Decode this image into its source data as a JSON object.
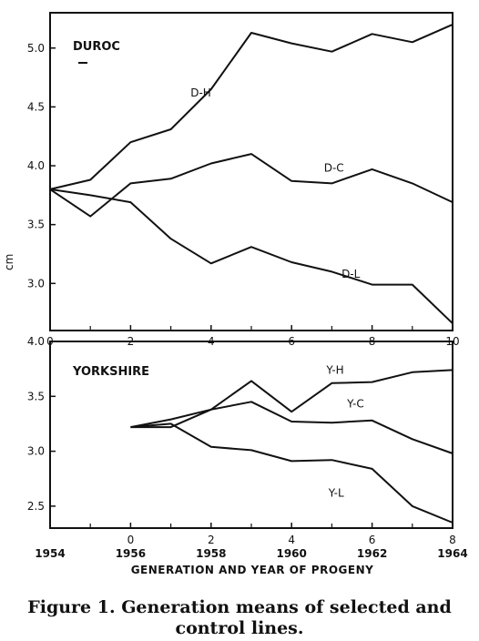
{
  "chart_data": [
    {
      "type": "line",
      "panel_label": "DUROC",
      "ylabel": "cm",
      "ylim": [
        2.6,
        5.3
      ],
      "xlim": [
        0,
        10
      ],
      "y_ticks": [
        "3.0",
        "3.5",
        "4.0",
        "4.5",
        "5.0"
      ],
      "y_tick_values": [
        3.0,
        3.5,
        4.0,
        4.5,
        5.0
      ],
      "x_ticks": [
        "0",
        "2",
        "4",
        "6",
        "8",
        "10"
      ],
      "x_tick_values": [
        0,
        2,
        4,
        6,
        8,
        10
      ],
      "series": [
        {
          "name": "D-H",
          "x": [
            0,
            1,
            2,
            3,
            4,
            5,
            6,
            7,
            8,
            9,
            10
          ],
          "y": [
            3.8,
            3.88,
            4.2,
            4.31,
            4.65,
            5.13,
            5.04,
            4.97,
            5.12,
            5.05,
            5.2
          ]
        },
        {
          "name": "D-C",
          "x": [
            0,
            1,
            2,
            3,
            4,
            5,
            6,
            7,
            8,
            9,
            10
          ],
          "y": [
            3.8,
            3.57,
            3.85,
            3.89,
            4.02,
            4.1,
            3.87,
            3.85,
            3.97,
            3.85,
            3.69
          ]
        },
        {
          "name": "D-L",
          "x": [
            0,
            1,
            2,
            3,
            4,
            5,
            6,
            7,
            8,
            9,
            10
          ],
          "y": [
            3.8,
            3.75,
            3.69,
            3.38,
            3.17,
            3.31,
            3.18,
            3.1,
            2.99,
            2.99,
            2.66
          ]
        }
      ]
    },
    {
      "type": "line",
      "panel_label": "YORKSHIRE",
      "ylim": [
        2.3,
        4.0
      ],
      "xlim": [
        -2,
        8
      ],
      "y_ticks": [
        "2.5",
        "3.0",
        "3.5",
        "4.0"
      ],
      "y_tick_values": [
        2.5,
        3.0,
        3.5,
        4.0
      ],
      "x_ticks": [
        "0",
        "2",
        "4",
        "6",
        "8"
      ],
      "x_tick_values": [
        0,
        2,
        4,
        6,
        8
      ],
      "year_ticks": [
        "1954",
        "1956",
        "1958",
        "1960",
        "1962",
        "1964"
      ],
      "year_tick_values": [
        -2,
        0,
        2,
        4,
        6,
        8
      ],
      "xlabel": "GENERATION AND YEAR OF PROGENY",
      "series": [
        {
          "name": "Y-H",
          "x": [
            0,
            1,
            2,
            3,
            4,
            5,
            6,
            7,
            8
          ],
          "y": [
            3.22,
            3.22,
            3.38,
            3.64,
            3.36,
            3.62,
            3.63,
            3.72,
            3.74
          ]
        },
        {
          "name": "Y-C",
          "x": [
            0,
            1,
            2,
            3,
            4,
            5,
            6,
            7,
            8
          ],
          "y": [
            3.22,
            3.29,
            3.38,
            3.45,
            3.27,
            3.26,
            3.28,
            3.11,
            2.98
          ]
        },
        {
          "name": "Y-L",
          "x": [
            0,
            1,
            2,
            3,
            4,
            5,
            6,
            7,
            8
          ],
          "y": [
            3.22,
            3.25,
            3.04,
            3.01,
            2.91,
            2.92,
            2.84,
            2.5,
            2.35
          ]
        }
      ]
    }
  ],
  "caption_line1": "Figure 1. Generation means of selected and",
  "caption_line2": "control lines."
}
